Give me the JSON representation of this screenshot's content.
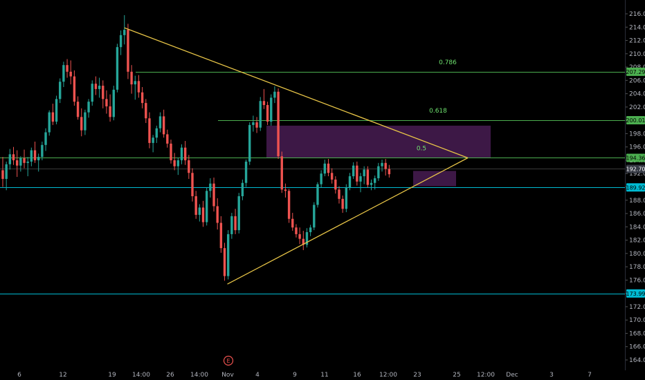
{
  "chart_data": {
    "type": "candlestick",
    "y_axis": {
      "ylim": [
        163,
        217
      ],
      "ticks": [
        164,
        166,
        168,
        170,
        172,
        174,
        176,
        178,
        180,
        182,
        184,
        186,
        188,
        190,
        192,
        194,
        196,
        198,
        200,
        202,
        204,
        206,
        208,
        210,
        212,
        214,
        216
      ]
    },
    "x_axis": {
      "tick_labels": [
        "6",
        "12",
        "19",
        "14:00",
        "26",
        "14:00",
        "Nov",
        "4",
        "9",
        "11",
        "16",
        "12:00",
        "23",
        "25",
        "12:00",
        "Dec",
        "3",
        "7"
      ]
    },
    "colors": {
      "up": "#26a69a",
      "down": "#ef5350",
      "fib": "#4caf50",
      "support": "#00bcd4",
      "triangle": "#e8c547",
      "zone": "#3d1846"
    },
    "candles": [
      [
        192.5,
        194.5,
        190.0,
        191.2
      ],
      [
        191.2,
        193.8,
        189.5,
        193.4
      ],
      [
        193.4,
        195.7,
        192.6,
        194.9
      ],
      [
        194.9,
        196.0,
        193.3,
        194.0
      ],
      [
        194.0,
        195.5,
        191.5,
        193.2
      ],
      [
        193.2,
        194.6,
        192.3,
        194.3
      ],
      [
        194.3,
        195.6,
        192.8,
        193.6
      ],
      [
        193.6,
        194.5,
        191.6,
        193.8
      ],
      [
        193.8,
        195.9,
        193.1,
        195.5
      ],
      [
        195.5,
        196.8,
        193.6,
        194.0
      ],
      [
        194.0,
        195.0,
        192.3,
        194.5
      ],
      [
        194.5,
        196.8,
        194.0,
        196.3
      ],
      [
        196.3,
        198.8,
        195.4,
        198.2
      ],
      [
        198.2,
        201.5,
        197.7,
        201.2
      ],
      [
        201.2,
        202.5,
        199.3,
        199.8
      ],
      [
        199.8,
        203.7,
        199.4,
        203.2
      ],
      [
        203.2,
        206.3,
        202.6,
        205.8
      ],
      [
        205.8,
        208.8,
        205.0,
        208.3
      ],
      [
        208.3,
        209.2,
        206.4,
        207.3
      ],
      [
        207.3,
        209.0,
        205.4,
        206.6
      ],
      [
        206.6,
        207.5,
        202.2,
        202.8
      ],
      [
        202.8,
        203.6,
        200.1,
        200.5
      ],
      [
        200.5,
        201.8,
        197.6,
        198.5
      ],
      [
        198.5,
        201.6,
        197.8,
        201.2
      ],
      [
        201.2,
        203.2,
        200.4,
        202.8
      ],
      [
        202.8,
        206.0,
        202.2,
        205.5
      ],
      [
        205.5,
        206.6,
        203.8,
        204.7
      ],
      [
        204.7,
        206.4,
        203.4,
        205.2
      ],
      [
        205.2,
        206.0,
        201.8,
        203.2
      ],
      [
        203.2,
        204.5,
        201.0,
        202.1
      ],
      [
        202.1,
        203.9,
        199.8,
        200.5
      ],
      [
        200.5,
        205.2,
        200.0,
        204.6
      ],
      [
        204.6,
        211.5,
        204.2,
        211.0
      ],
      [
        211.0,
        213.5,
        209.8,
        212.8
      ],
      [
        212.8,
        215.8,
        211.4,
        213.6
      ],
      [
        213.6,
        214.5,
        206.2,
        207.3
      ],
      [
        207.3,
        208.3,
        204.0,
        205.4
      ],
      [
        205.4,
        206.7,
        203.1,
        205.9
      ],
      [
        205.9,
        206.8,
        203.4,
        204.2
      ],
      [
        204.2,
        205.0,
        201.8,
        202.6
      ],
      [
        202.6,
        203.2,
        199.6,
        200.3
      ],
      [
        200.3,
        201.2,
        195.8,
        196.6
      ],
      [
        196.6,
        197.8,
        195.2,
        197.4
      ],
      [
        197.4,
        199.2,
        196.6,
        198.8
      ],
      [
        198.8,
        201.2,
        198.2,
        200.6
      ],
      [
        200.6,
        201.6,
        197.4,
        197.9
      ],
      [
        197.9,
        198.6,
        195.9,
        196.5
      ],
      [
        196.5,
        197.1,
        193.5,
        194.0
      ],
      [
        194.0,
        195.1,
        192.5,
        193.1
      ],
      [
        193.1,
        194.4,
        191.8,
        194.0
      ],
      [
        194.0,
        196.4,
        193.4,
        195.9
      ],
      [
        195.9,
        196.9,
        193.3,
        194.0
      ],
      [
        194.0,
        194.8,
        191.2,
        192.1
      ],
      [
        192.1,
        192.8,
        187.8,
        188.6
      ],
      [
        188.6,
        189.4,
        185.2,
        185.8
      ],
      [
        185.8,
        187.4,
        184.8,
        186.9
      ],
      [
        186.9,
        187.9,
        184.0,
        184.7
      ],
      [
        184.7,
        189.9,
        184.2,
        189.4
      ],
      [
        189.4,
        191.3,
        188.4,
        190.5
      ],
      [
        190.5,
        191.4,
        186.3,
        187.1
      ],
      [
        187.1,
        188.3,
        183.6,
        184.6
      ],
      [
        184.6,
        185.6,
        180.1,
        180.8
      ],
      [
        180.8,
        181.6,
        175.9,
        176.6
      ],
      [
        176.6,
        183.5,
        176.1,
        182.9
      ],
      [
        182.9,
        186.1,
        182.2,
        185.6
      ],
      [
        185.6,
        186.7,
        182.9,
        183.5
      ],
      [
        183.5,
        189.1,
        183.0,
        188.6
      ],
      [
        188.6,
        191.1,
        188.0,
        190.6
      ],
      [
        190.6,
        194.1,
        190.0,
        193.8
      ],
      [
        193.8,
        199.7,
        193.3,
        199.3
      ],
      [
        199.3,
        200.7,
        198.3,
        199.7
      ],
      [
        199.7,
        200.5,
        198.1,
        198.9
      ],
      [
        198.9,
        203.5,
        198.4,
        202.9
      ],
      [
        202.9,
        204.7,
        201.7,
        202.3
      ],
      [
        202.3,
        202.8,
        199.3,
        199.8
      ],
      [
        199.8,
        203.9,
        199.2,
        203.4
      ],
      [
        203.4,
        205.1,
        202.6,
        204.3
      ],
      [
        204.3,
        204.8,
        194.2,
        194.6
      ],
      [
        194.6,
        195.3,
        189.1,
        189.6
      ],
      [
        189.6,
        190.5,
        188.4,
        189.4
      ],
      [
        189.4,
        189.7,
        184.6,
        185.2
      ],
      [
        185.2,
        186.1,
        183.4,
        183.9
      ],
      [
        183.9,
        184.4,
        182.4,
        182.9
      ],
      [
        182.9,
        183.9,
        181.4,
        182.2
      ],
      [
        182.2,
        183.4,
        180.5,
        181.3
      ],
      [
        181.3,
        183.8,
        180.9,
        183.2
      ],
      [
        183.2,
        184.3,
        182.6,
        183.9
      ],
      [
        183.9,
        187.7,
        183.5,
        187.3
      ],
      [
        187.3,
        190.7,
        186.9,
        190.4
      ],
      [
        190.4,
        192.5,
        189.9,
        192.0
      ],
      [
        192.0,
        194.1,
        191.6,
        193.5
      ],
      [
        193.5,
        194.2,
        191.6,
        192.1
      ],
      [
        192.1,
        192.8,
        190.5,
        191.1
      ],
      [
        191.1,
        191.6,
        189.0,
        189.6
      ],
      [
        189.6,
        190.1,
        187.5,
        188.2
      ],
      [
        188.2,
        188.7,
        186.1,
        186.7
      ],
      [
        186.7,
        190.4,
        186.2,
        189.9
      ],
      [
        189.9,
        192.1,
        189.5,
        191.6
      ],
      [
        191.6,
        193.7,
        191.2,
        193.2
      ],
      [
        193.2,
        193.8,
        190.2,
        190.8
      ],
      [
        190.8,
        192.1,
        189.2,
        191.6
      ],
      [
        191.6,
        193.1,
        190.4,
        192.6
      ],
      [
        192.6,
        193.1,
        189.9,
        190.3
      ],
      [
        190.3,
        191.1,
        189.5,
        190.6
      ],
      [
        190.6,
        191.7,
        189.6,
        191.3
      ],
      [
        191.3,
        193.6,
        190.9,
        193.1
      ],
      [
        193.1,
        194.1,
        192.3,
        193.6
      ],
      [
        193.6,
        194.2,
        191.7,
        192.7
      ],
      [
        192.7,
        193.3,
        191.4,
        191.9
      ]
    ],
    "hlines": [
      {
        "value": 207.29,
        "label": "0.786",
        "color": "#4caf50"
      },
      {
        "value": 200.01,
        "label": "0.618",
        "color": "#4caf50"
      },
      {
        "value": 194.36,
        "label": "0.5",
        "color": "#4caf50"
      },
      {
        "value": 192.7,
        "label": "",
        "color": "#3a3a3a"
      },
      {
        "value": 189.92,
        "label": "",
        "color": "#00bcd4"
      },
      {
        "value": 173.99,
        "label": "",
        "color": "#00bcd4"
      }
    ],
    "price_labels": [
      {
        "value": 207.29,
        "text": "207.29",
        "bg": "#4caf50",
        "fg": "#000000"
      },
      {
        "value": 200.01,
        "text": "200.01",
        "bg": "#4caf50",
        "fg": "#000000"
      },
      {
        "value": 194.36,
        "text": "194.36",
        "bg": "#4caf50",
        "fg": "#000000"
      },
      {
        "value": 192.7,
        "text": "192.70",
        "bg": "#363a45",
        "fg": "#ffffff"
      },
      {
        "value": 189.92,
        "text": "189.92",
        "bg": "#00bcd4",
        "fg": "#000000"
      },
      {
        "value": 173.99,
        "text": "173.99",
        "bg": "#00bcd4",
        "fg": "#000000"
      }
    ],
    "event_marker": "E"
  }
}
